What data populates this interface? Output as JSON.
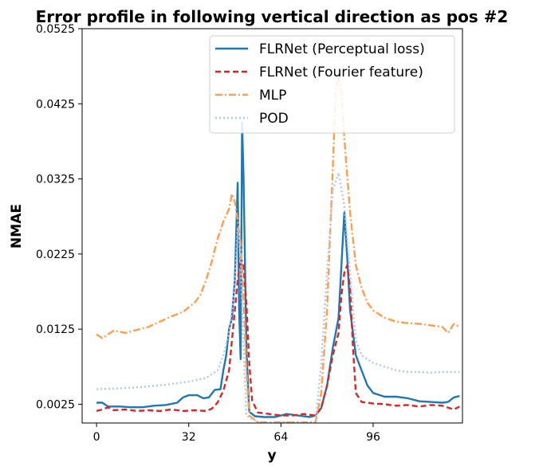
{
  "chart_data": {
    "type": "line",
    "title": "Error profile in following vertical direction as pos #2",
    "xlabel": "y",
    "ylabel": "NMAE",
    "xlim": [
      -5,
      127
    ],
    "ylim": [
      0,
      0.0525
    ],
    "xticks": [
      0,
      32,
      64,
      96
    ],
    "xtick_labels": [
      "0",
      "32",
      "64",
      "96"
    ],
    "yticks": [
      0.0025,
      0.0125,
      0.0225,
      0.0325,
      0.0425,
      0.0525
    ],
    "ytick_labels": [
      "0.0025",
      "0.0125",
      "0.0225",
      "0.0325",
      "0.0425",
      "0.0525"
    ],
    "grid": false,
    "legend_position": "top-right",
    "series": [
      {
        "name": "FLRNet (Perceptual loss)",
        "color": "#1f77b4",
        "style": "solid",
        "points": [
          [
            0,
            0.0027
          ],
          [
            2,
            0.0027
          ],
          [
            4,
            0.0022
          ],
          [
            8,
            0.0022
          ],
          [
            12,
            0.0021
          ],
          [
            16,
            0.0021
          ],
          [
            20,
            0.0023
          ],
          [
            24,
            0.0024
          ],
          [
            28,
            0.0027
          ],
          [
            30,
            0.0034
          ],
          [
            32,
            0.0037
          ],
          [
            35,
            0.0037
          ],
          [
            37,
            0.0033
          ],
          [
            39,
            0.0034
          ],
          [
            41,
            0.0044
          ],
          [
            43,
            0.0045
          ],
          [
            44,
            0.007
          ],
          [
            45,
            0.009
          ],
          [
            46,
            0.0125
          ],
          [
            47,
            0.014
          ],
          [
            48,
            0.019
          ],
          [
            49,
            0.032
          ],
          [
            49.5,
            0.015
          ],
          [
            50,
            0.0085
          ],
          [
            50.5,
            0.04
          ],
          [
            51,
            0.033
          ],
          [
            52,
            0.01
          ],
          [
            53,
            0.0015
          ],
          [
            55,
            0.0009
          ],
          [
            58,
            0.0008
          ],
          [
            62,
            0.0008
          ],
          [
            66,
            0.0012
          ],
          [
            70,
            0.001
          ],
          [
            74,
            0.0008
          ],
          [
            76,
            0.001
          ],
          [
            78,
            0.002
          ],
          [
            80,
            0.005
          ],
          [
            82,
            0.01
          ],
          [
            84,
            0.014
          ],
          [
            86,
            0.028
          ],
          [
            87,
            0.022
          ],
          [
            88,
            0.015
          ],
          [
            90,
            0.009
          ],
          [
            92,
            0.007
          ],
          [
            94,
            0.005
          ],
          [
            96,
            0.004
          ],
          [
            100,
            0.0035
          ],
          [
            104,
            0.0035
          ],
          [
            108,
            0.0033
          ],
          [
            112,
            0.0029
          ],
          [
            116,
            0.0028
          ],
          [
            120,
            0.0027
          ],
          [
            122,
            0.0028
          ],
          [
            124,
            0.0034
          ],
          [
            126,
            0.0036
          ]
        ]
      },
      {
        "name": "FLRNet (Fourier feature)",
        "color": "#d62728",
        "style": "dashed",
        "points": [
          [
            0,
            0.0016
          ],
          [
            2,
            0.0018
          ],
          [
            4,
            0.0021
          ],
          [
            6,
            0.0017
          ],
          [
            10,
            0.0018
          ],
          [
            14,
            0.0016
          ],
          [
            18,
            0.0017
          ],
          [
            22,
            0.0016
          ],
          [
            26,
            0.0018
          ],
          [
            30,
            0.0016
          ],
          [
            34,
            0.0017
          ],
          [
            38,
            0.0016
          ],
          [
            40,
            0.0019
          ],
          [
            42,
            0.0027
          ],
          [
            44,
            0.0043
          ],
          [
            46,
            0.007
          ],
          [
            47,
            0.011
          ],
          [
            48,
            0.015
          ],
          [
            49,
            0.019
          ],
          [
            50,
            0.022
          ],
          [
            51,
            0.021
          ],
          [
            52,
            0.016
          ],
          [
            53,
            0.008
          ],
          [
            54,
            0.003
          ],
          [
            56,
            0.0014
          ],
          [
            60,
            0.0012
          ],
          [
            64,
            0.001
          ],
          [
            68,
            0.001
          ],
          [
            72,
            0.0012
          ],
          [
            76,
            0.001
          ],
          [
            78,
            0.002
          ],
          [
            80,
            0.005
          ],
          [
            82,
            0.009
          ],
          [
            84,
            0.012
          ],
          [
            85,
            0.017
          ],
          [
            86,
            0.02
          ],
          [
            87,
            0.021
          ],
          [
            88,
            0.018
          ],
          [
            89,
            0.01
          ],
          [
            90,
            0.004
          ],
          [
            92,
            0.0028
          ],
          [
            96,
            0.0026
          ],
          [
            100,
            0.0025
          ],
          [
            104,
            0.0023
          ],
          [
            108,
            0.0024
          ],
          [
            112,
            0.0022
          ],
          [
            116,
            0.0024
          ],
          [
            120,
            0.0023
          ],
          [
            124,
            0.0018
          ],
          [
            126,
            0.0022
          ]
        ]
      },
      {
        "name": "MLP",
        "color": "#ff9e4a",
        "style": "dashdot",
        "points": [
          [
            0,
            0.0118
          ],
          [
            2,
            0.0113
          ],
          [
            4,
            0.0118
          ],
          [
            6,
            0.0123
          ],
          [
            10,
            0.012
          ],
          [
            14,
            0.0124
          ],
          [
            18,
            0.0128
          ],
          [
            22,
            0.0135
          ],
          [
            26,
            0.0142
          ],
          [
            30,
            0.0148
          ],
          [
            34,
            0.016
          ],
          [
            36,
            0.017
          ],
          [
            38,
            0.019
          ],
          [
            40,
            0.0215
          ],
          [
            42,
            0.0245
          ],
          [
            44,
            0.0268
          ],
          [
            46,
            0.0285
          ],
          [
            47,
            0.0305
          ],
          [
            48,
            0.0295
          ],
          [
            49,
            0.027
          ],
          [
            50,
            0.024
          ],
          [
            51,
            0.017
          ],
          [
            52,
            0.007
          ],
          [
            53,
            0.001
          ],
          [
            56,
            0.0001
          ],
          [
            60,
            0.0001
          ],
          [
            64,
            0.0001
          ],
          [
            68,
            0.0001
          ],
          [
            72,
            0.0001
          ],
          [
            76,
            0.0001
          ],
          [
            78,
            0.004
          ],
          [
            80,
            0.015
          ],
          [
            82,
            0.034
          ],
          [
            83,
            0.044
          ],
          [
            84,
            0.0465
          ],
          [
            85,
            0.044
          ],
          [
            86,
            0.038
          ],
          [
            88,
            0.028
          ],
          [
            90,
            0.021
          ],
          [
            92,
            0.018
          ],
          [
            94,
            0.016
          ],
          [
            96,
            0.015
          ],
          [
            98,
            0.0145
          ],
          [
            100,
            0.014
          ],
          [
            104,
            0.0135
          ],
          [
            108,
            0.0133
          ],
          [
            112,
            0.0132
          ],
          [
            116,
            0.013
          ],
          [
            120,
            0.0128
          ],
          [
            122,
            0.012
          ],
          [
            124,
            0.0132
          ],
          [
            126,
            0.0128
          ]
        ]
      },
      {
        "name": "POD",
        "color": "#aec7e8",
        "style": "dotted",
        "points": [
          [
            0,
            0.0045
          ],
          [
            8,
            0.0046
          ],
          [
            16,
            0.0048
          ],
          [
            24,
            0.0051
          ],
          [
            32,
            0.0055
          ],
          [
            38,
            0.006
          ],
          [
            42,
            0.007
          ],
          [
            44,
            0.009
          ],
          [
            46,
            0.012
          ],
          [
            48,
            0.018
          ],
          [
            49,
            0.026
          ],
          [
            50,
            0.022
          ],
          [
            51,
            0.01
          ],
          [
            52,
            0.001
          ],
          [
            56,
            0.0001
          ],
          [
            64,
            0.0001
          ],
          [
            72,
            0.0001
          ],
          [
            76,
            0.0001
          ],
          [
            78,
            0.008
          ],
          [
            80,
            0.02
          ],
          [
            82,
            0.031
          ],
          [
            84,
            0.0333
          ],
          [
            86,
            0.029
          ],
          [
            88,
            0.02
          ],
          [
            90,
            0.011
          ],
          [
            92,
            0.009
          ],
          [
            96,
            0.008
          ],
          [
            100,
            0.0075
          ],
          [
            104,
            0.007
          ],
          [
            108,
            0.0068
          ],
          [
            112,
            0.0068
          ],
          [
            116,
            0.0067
          ],
          [
            120,
            0.0068
          ],
          [
            126,
            0.0068
          ]
        ]
      }
    ]
  }
}
